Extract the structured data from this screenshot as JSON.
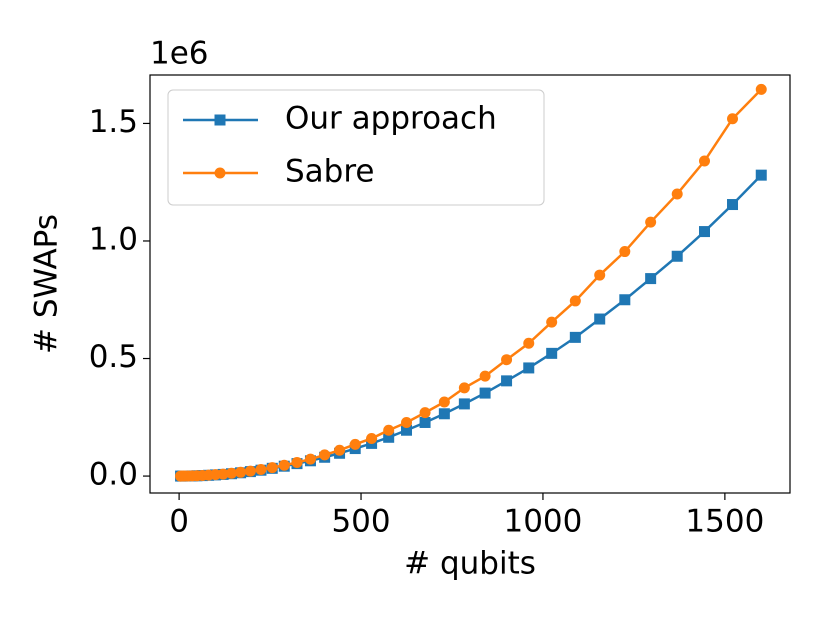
{
  "chart_data": {
    "type": "line",
    "x_label": "# qubits",
    "y_label": "# SWAPs",
    "y_offset_label": "1e6",
    "x": [
      4,
      9,
      16,
      25,
      36,
      49,
      64,
      81,
      100,
      121,
      144,
      169,
      196,
      225,
      256,
      289,
      324,
      361,
      400,
      441,
      484,
      529,
      576,
      625,
      676,
      729,
      784,
      841,
      900,
      961,
      1024,
      1089,
      1156,
      1225,
      1296,
      1369,
      1444,
      1521,
      1600
    ],
    "series": [
      {
        "name": "Our approach",
        "color": "#1f77b4",
        "marker": "square",
        "values": [
          10,
          50,
          150,
          300,
          600,
          1200,
          2000,
          3300,
          5000,
          7000,
          10000,
          14000,
          19000,
          25000,
          33000,
          42000,
          53000,
          65000,
          80000,
          97000,
          117000,
          139000,
          165000,
          195000,
          228000,
          265000,
          307000,
          353000,
          405000,
          460000,
          522000,
          590000,
          668000,
          750000,
          840000,
          935000,
          1040000,
          1155000,
          1280000
        ]
      },
      {
        "name": "Sabre",
        "color": "#ff7f0e",
        "marker": "circle",
        "values": [
          20,
          100,
          200,
          400,
          800,
          1500,
          2500,
          4000,
          6000,
          8500,
          12000,
          16000,
          21000,
          28000,
          36000,
          46000,
          58000,
          72000,
          90000,
          110000,
          135000,
          160000,
          195000,
          228000,
          270000,
          315000,
          375000,
          425000,
          495000,
          565000,
          655000,
          745000,
          855000,
          955000,
          1080000,
          1200000,
          1340000,
          1520000,
          1645000
        ]
      }
    ],
    "xlim": [
      -80,
      1679
    ],
    "xticks": [
      0,
      500,
      1000,
      1500
    ],
    "ylim": [
      -72000,
      1706000
    ],
    "yticks": [
      {
        "value": 0,
        "label": "0.0"
      },
      {
        "value": 500000,
        "label": "0.5"
      },
      {
        "value": 1000000,
        "label": "1.0"
      },
      {
        "value": 1500000,
        "label": "1.5"
      }
    ],
    "legend": "upper left",
    "grid": false
  }
}
